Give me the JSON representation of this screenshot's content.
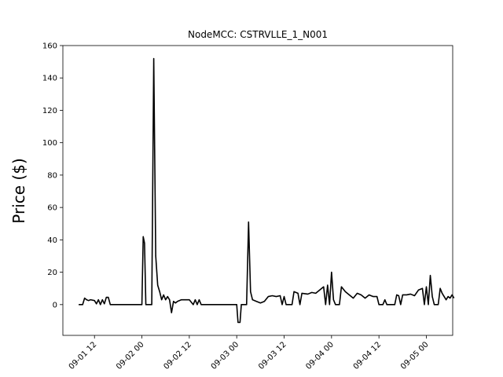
{
  "chart_data": {
    "type": "line",
    "title": "NodeMCC: CSTRVLLE_1_N001",
    "xlabel": "",
    "ylabel": "Price ($)",
    "ylim": [
      -19,
      160
    ],
    "xlim": [
      "2018-09-01 04:00",
      "2018-09-05 06:40"
    ],
    "x_ticks": [
      {
        "value": "2018-09-01 12:00",
        "label": "09-01 12"
      },
      {
        "value": "2018-09-02 00:00",
        "label": "09-02 00"
      },
      {
        "value": "2018-09-02 12:00",
        "label": "09-02 12"
      },
      {
        "value": "2018-09-03 00:00",
        "label": "09-03 00"
      },
      {
        "value": "2018-09-03 12:00",
        "label": "09-03 12"
      },
      {
        "value": "2018-09-04 00:00",
        "label": "09-04 00"
      },
      {
        "value": "2018-09-04 12:00",
        "label": "09-04 12"
      },
      {
        "value": "2018-09-05 00:00",
        "label": "09-05 00"
      }
    ],
    "y_ticks": [
      0,
      20,
      40,
      60,
      80,
      100,
      120,
      140,
      160
    ],
    "grid": false,
    "line_color": "#000000",
    "series": [
      {
        "points": [
          [
            "2018-09-01 08:00",
            0
          ],
          [
            "2018-09-01 09:00",
            0
          ],
          [
            "2018-09-01 09:30",
            4
          ],
          [
            "2018-09-01 10:00",
            3
          ],
          [
            "2018-09-01 10:30",
            2.5
          ],
          [
            "2018-09-01 11:00",
            3
          ],
          [
            "2018-09-01 12:00",
            2.5
          ],
          [
            "2018-09-01 12:30",
            0.5
          ],
          [
            "2018-09-01 13:00",
            3
          ],
          [
            "2018-09-01 13:30",
            0
          ],
          [
            "2018-09-01 14:00",
            3
          ],
          [
            "2018-09-01 14:30",
            0.5
          ],
          [
            "2018-09-01 15:00",
            4.5
          ],
          [
            "2018-09-01 15:30",
            4.5
          ],
          [
            "2018-09-01 16:00",
            0
          ],
          [
            "2018-09-01 20:00",
            0
          ],
          [
            "2018-09-02 00:00",
            0
          ],
          [
            "2018-09-02 00:20",
            42
          ],
          [
            "2018-09-02 00:40",
            38
          ],
          [
            "2018-09-02 01:00",
            0
          ],
          [
            "2018-09-02 02:30",
            0
          ],
          [
            "2018-09-02 03:00",
            152
          ],
          [
            "2018-09-02 03:30",
            30
          ],
          [
            "2018-09-02 04:00",
            12
          ],
          [
            "2018-09-02 04:30",
            8
          ],
          [
            "2018-09-02 05:00",
            3
          ],
          [
            "2018-09-02 05:30",
            6
          ],
          [
            "2018-09-02 06:00",
            3
          ],
          [
            "2018-09-02 06:30",
            5
          ],
          [
            "2018-09-02 07:00",
            3
          ],
          [
            "2018-09-02 07:30",
            -5
          ],
          [
            "2018-09-02 08:00",
            2
          ],
          [
            "2018-09-02 08:30",
            1
          ],
          [
            "2018-09-02 09:00",
            2
          ],
          [
            "2018-09-02 10:00",
            3
          ],
          [
            "2018-09-02 12:00",
            3
          ],
          [
            "2018-09-02 13:00",
            0
          ],
          [
            "2018-09-02 13:30",
            3
          ],
          [
            "2018-09-02 14:00",
            0
          ],
          [
            "2018-09-02 14:30",
            3
          ],
          [
            "2018-09-02 15:00",
            0
          ],
          [
            "2018-09-02 20:00",
            0
          ],
          [
            "2018-09-03 00:00",
            0
          ],
          [
            "2018-09-03 00:20",
            -11
          ],
          [
            "2018-09-03 00:50",
            -11
          ],
          [
            "2018-09-03 01:10",
            0
          ],
          [
            "2018-09-03 02:30",
            0
          ],
          [
            "2018-09-03 03:00",
            51
          ],
          [
            "2018-09-03 03:30",
            8
          ],
          [
            "2018-09-03 04:00",
            3
          ],
          [
            "2018-09-03 05:00",
            2
          ],
          [
            "2018-09-03 06:00",
            1
          ],
          [
            "2018-09-03 07:00",
            2
          ],
          [
            "2018-09-03 08:00",
            5
          ],
          [
            "2018-09-03 09:00",
            5.5
          ],
          [
            "2018-09-03 10:00",
            5
          ],
          [
            "2018-09-03 11:00",
            5.5
          ],
          [
            "2018-09-03 11:30",
            0
          ],
          [
            "2018-09-03 12:00",
            5
          ],
          [
            "2018-09-03 12:30",
            0
          ],
          [
            "2018-09-03 14:00",
            0
          ],
          [
            "2018-09-03 14:30",
            8
          ],
          [
            "2018-09-03 15:30",
            7
          ],
          [
            "2018-09-03 16:00",
            0
          ],
          [
            "2018-09-03 16:30",
            7
          ],
          [
            "2018-09-03 18:00",
            6.5
          ],
          [
            "2018-09-03 19:00",
            7.5
          ],
          [
            "2018-09-03 20:00",
            7
          ],
          [
            "2018-09-03 21:00",
            9
          ],
          [
            "2018-09-03 22:00",
            11
          ],
          [
            "2018-09-03 22:30",
            0
          ],
          [
            "2018-09-03 23:00",
            12
          ],
          [
            "2018-09-03 23:30",
            0
          ],
          [
            "2018-09-04 00:00",
            20
          ],
          [
            "2018-09-04 00:30",
            3
          ],
          [
            "2018-09-04 01:00",
            0
          ],
          [
            "2018-09-04 02:00",
            0
          ],
          [
            "2018-09-04 02:30",
            11
          ],
          [
            "2018-09-04 03:30",
            8
          ],
          [
            "2018-09-04 04:30",
            6
          ],
          [
            "2018-09-04 05:30",
            4
          ],
          [
            "2018-09-04 06:30",
            7
          ],
          [
            "2018-09-04 07:30",
            6
          ],
          [
            "2018-09-04 08:30",
            4
          ],
          [
            "2018-09-04 09:30",
            6
          ],
          [
            "2018-09-04 10:30",
            5
          ],
          [
            "2018-09-04 11:30",
            5
          ],
          [
            "2018-09-04 12:00",
            0
          ],
          [
            "2018-09-04 13:00",
            0
          ],
          [
            "2018-09-04 13:30",
            3
          ],
          [
            "2018-09-04 14:00",
            0
          ],
          [
            "2018-09-04 16:00",
            0
          ],
          [
            "2018-09-04 16:30",
            6
          ],
          [
            "2018-09-04 17:00",
            5.5
          ],
          [
            "2018-09-04 17:30",
            0
          ],
          [
            "2018-09-04 18:00",
            6
          ],
          [
            "2018-09-04 19:00",
            6
          ],
          [
            "2018-09-04 20:00",
            6.5
          ],
          [
            "2018-09-04 21:00",
            5.5
          ],
          [
            "2018-09-04 22:00",
            9
          ],
          [
            "2018-09-04 23:00",
            10
          ],
          [
            "2018-09-04 23:30",
            0
          ],
          [
            "2018-09-05 00:00",
            11
          ],
          [
            "2018-09-05 00:30",
            0
          ],
          [
            "2018-09-05 01:00",
            18
          ],
          [
            "2018-09-05 01:30",
            5
          ],
          [
            "2018-09-05 02:00",
            0
          ],
          [
            "2018-09-05 03:00",
            0
          ],
          [
            "2018-09-05 03:30",
            10
          ],
          [
            "2018-09-05 04:00",
            7
          ],
          [
            "2018-09-05 04:30",
            5
          ],
          [
            "2018-09-05 05:00",
            3
          ],
          [
            "2018-09-05 05:30",
            5
          ],
          [
            "2018-09-05 06:00",
            4
          ],
          [
            "2018-09-05 06:30",
            6
          ],
          [
            "2018-09-05 07:00",
            4
          ]
        ]
      }
    ]
  }
}
